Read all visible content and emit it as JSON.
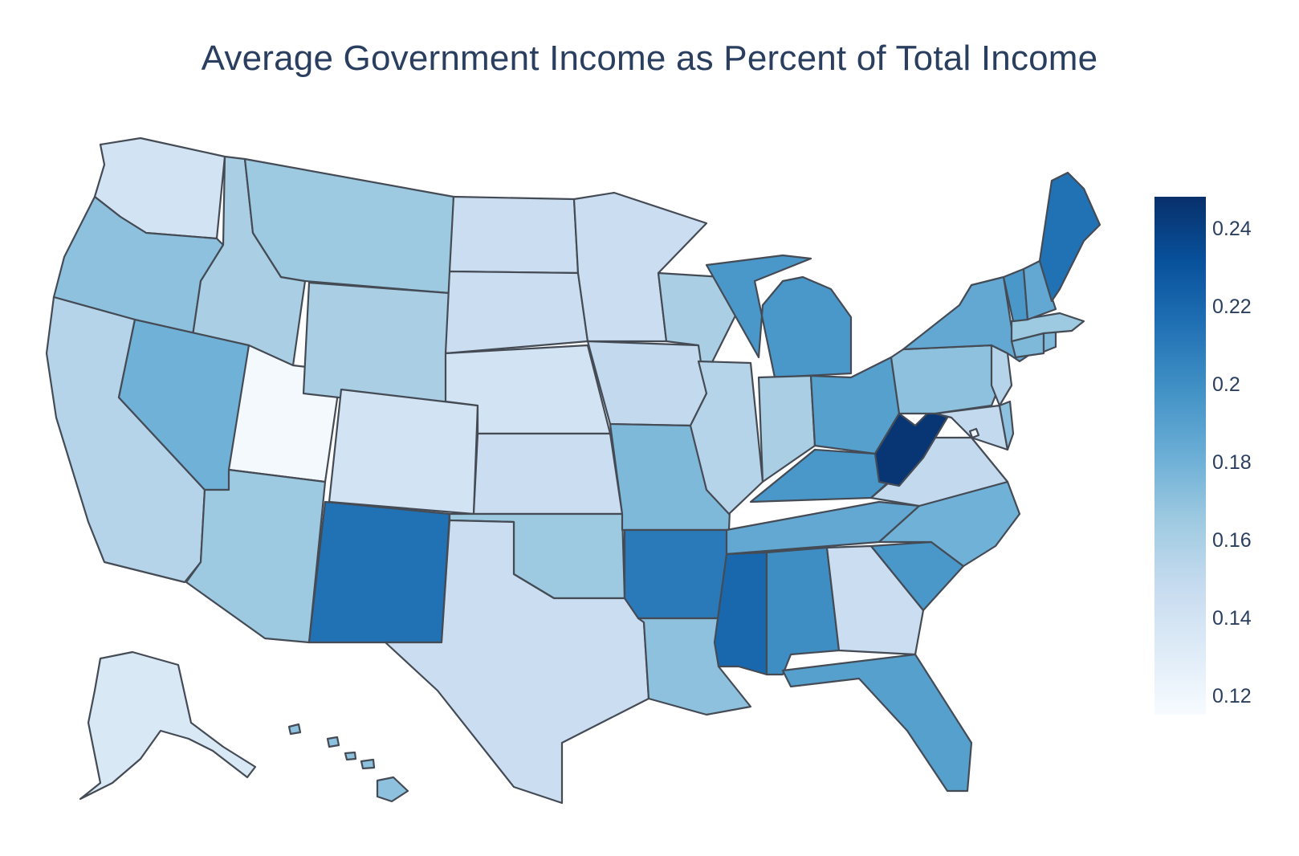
{
  "title": "Average Government Income as Percent of Total Income",
  "colorscale": {
    "name": "Blues",
    "stops": [
      "#f7fbff",
      "#deebf7",
      "#c6dbef",
      "#9ecae1",
      "#6baed6",
      "#4292c6",
      "#2171b5",
      "#08519c",
      "#08306b"
    ],
    "range": [
      0.115,
      0.248
    ],
    "ticks": [
      "0.12",
      "0.14",
      "0.16",
      "0.18",
      "0.2",
      "0.22",
      "0.24"
    ],
    "tick_values": [
      0.12,
      0.14,
      0.16,
      0.18,
      0.2,
      0.22,
      0.24
    ]
  },
  "chart_data": {
    "type": "choropleth",
    "scope": "usa",
    "title": "Average Government Income as Percent of Total Income",
    "colorbar_range": [
      0.115,
      0.248
    ],
    "colorbar_ticks": [
      0.12,
      0.14,
      0.16,
      0.18,
      0.2,
      0.22,
      0.24
    ],
    "values": {
      "WA": 0.14,
      "OR": 0.17,
      "CA": 0.155,
      "ID": 0.16,
      "NV": 0.18,
      "UT": 0.117,
      "AZ": 0.165,
      "MT": 0.165,
      "WY": 0.16,
      "CO": 0.14,
      "NM": 0.215,
      "ND": 0.145,
      "SD": 0.145,
      "NE": 0.14,
      "KS": 0.145,
      "OK": 0.165,
      "TX": 0.145,
      "MN": 0.145,
      "IA": 0.15,
      "MO": 0.175,
      "AR": 0.21,
      "LA": 0.17,
      "WI": 0.16,
      "IL": 0.155,
      "MI": 0.195,
      "IN": 0.16,
      "OH": 0.19,
      "KY": 0.195,
      "TN": 0.185,
      "MS": 0.22,
      "AL": 0.2,
      "GA": 0.145,
      "FL": 0.19,
      "SC": 0.195,
      "NC": 0.18,
      "VA": 0.15,
      "WV": 0.245,
      "MD": 0.15,
      "DE": 0.17,
      "PA": 0.17,
      "NJ": 0.155,
      "NY": 0.185,
      "CT": 0.175,
      "RI": 0.175,
      "MA": 0.165,
      "VT": 0.195,
      "NH": 0.185,
      "ME": 0.215,
      "AK": 0.135,
      "HI": 0.17,
      "DC": 0.12
    }
  }
}
